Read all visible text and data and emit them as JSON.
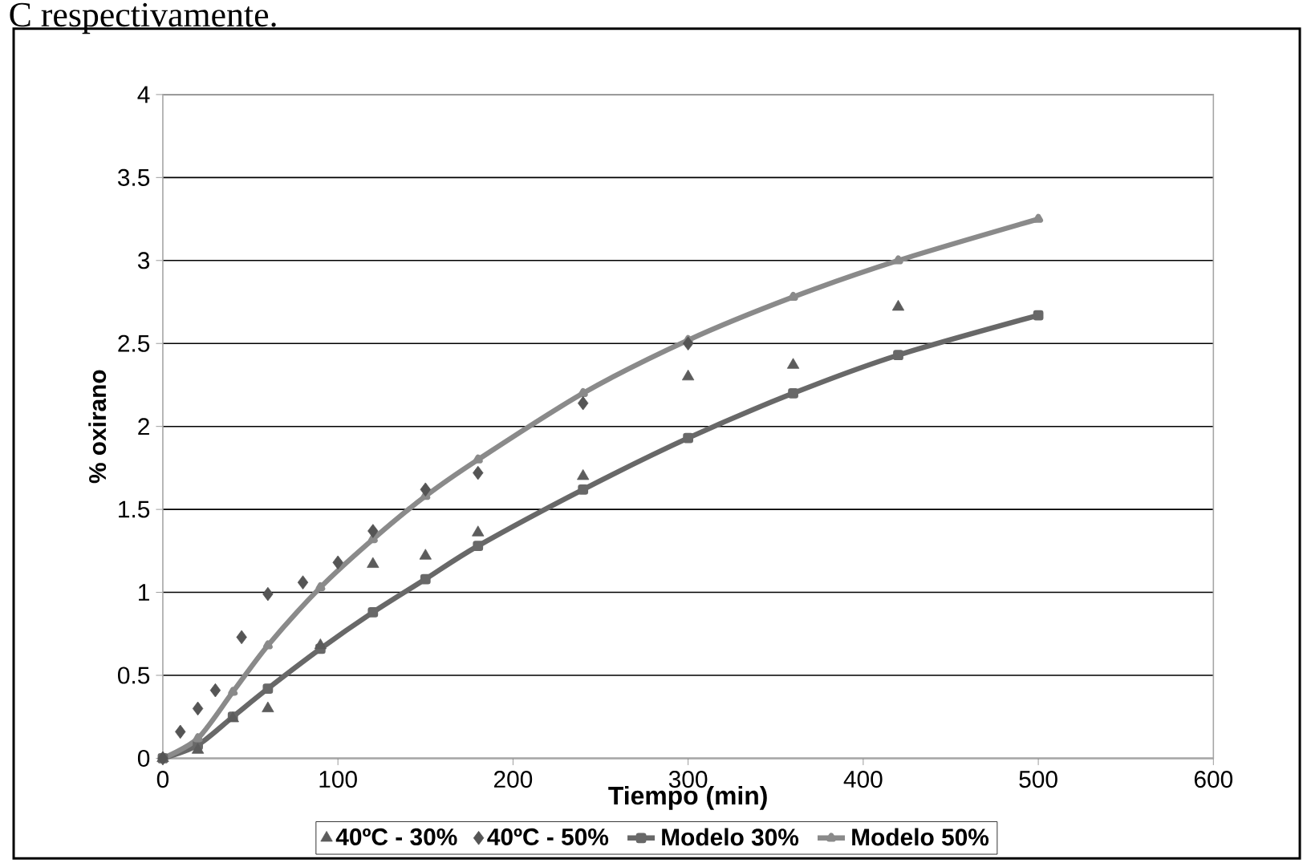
{
  "chart_data": {
    "type": "scatter",
    "xlabel": "Tiempo (min)",
    "ylabel": "% oxirano",
    "annotations": [
      "C respectivamente."
    ],
    "xlim": [
      0,
      600
    ],
    "ylim": [
      0,
      4
    ],
    "xticks": [
      0,
      100,
      200,
      300,
      400,
      500,
      600
    ],
    "yticks": [
      0,
      {
        "value": 0.5,
        "label": "0.5"
      },
      1,
      {
        "value": 1.5,
        "label": "1.5"
      },
      2,
      {
        "value": 2.5,
        "label": "2.5"
      },
      3,
      {
        "value": 3.5,
        "label": "3.5"
      },
      4
    ],
    "grid": "y",
    "legend": "bottom",
    "series": [
      {
        "name": "40ºC - 30%",
        "marker": "triangle",
        "color": "#5c5c5c",
        "x": [
          0,
          20,
          40,
          60,
          90,
          120,
          150,
          180,
          240,
          300,
          360,
          420
        ],
        "values": [
          0,
          0.05,
          0.24,
          0.3,
          0.68,
          1.17,
          1.22,
          1.36,
          1.7,
          2.3,
          2.37,
          2.72
        ]
      },
      {
        "name": "40ºC - 50%",
        "marker": "diamond",
        "color": "#555555",
        "x": [
          0,
          10,
          20,
          30,
          45,
          60,
          80,
          100,
          120,
          150,
          180,
          240,
          300
        ],
        "values": [
          0,
          0.16,
          0.3,
          0.41,
          0.73,
          0.99,
          1.06,
          1.18,
          1.37,
          1.62,
          1.72,
          2.14,
          2.5
        ]
      },
      {
        "name": "Modelo 30%",
        "type": "line",
        "marker": "square",
        "color": "#686868",
        "x": [
          0,
          20,
          40,
          60,
          90,
          120,
          150,
          180,
          240,
          300,
          360,
          420,
          500
        ],
        "values": [
          0,
          0.08,
          0.25,
          0.42,
          0.66,
          0.88,
          1.08,
          1.28,
          1.62,
          1.93,
          2.2,
          2.43,
          2.67
        ]
      },
      {
        "name": "Modelo 50%",
        "type": "line",
        "marker": "triangle",
        "color": "#8a8a8a",
        "x": [
          0,
          20,
          40,
          60,
          90,
          120,
          150,
          180,
          240,
          300,
          360,
          420,
          500
        ],
        "values": [
          0,
          0.12,
          0.4,
          0.68,
          1.03,
          1.32,
          1.58,
          1.8,
          2.2,
          2.52,
          2.78,
          3.0,
          3.25
        ]
      }
    ]
  }
}
